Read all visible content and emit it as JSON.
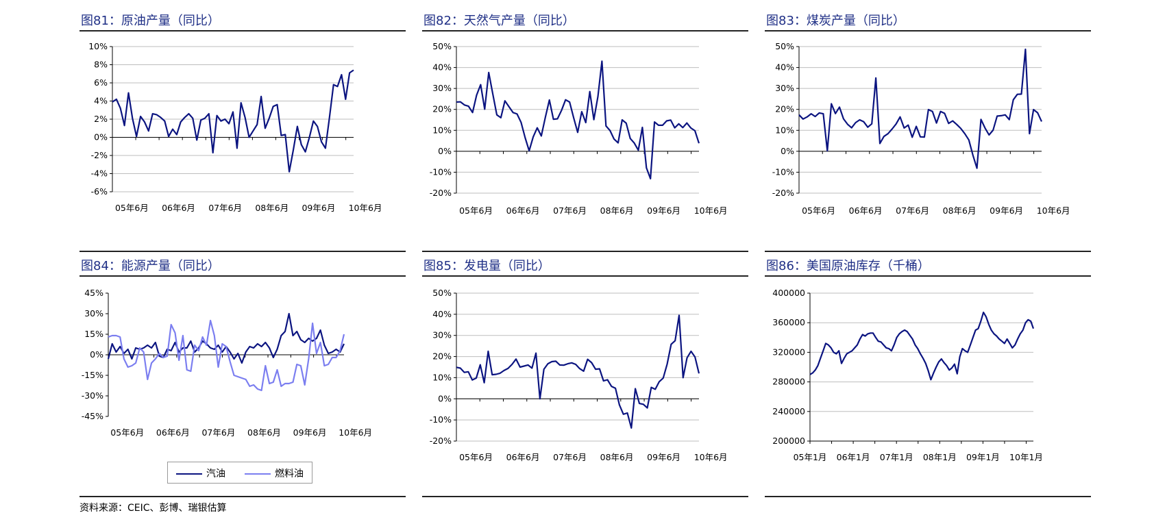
{
  "page": {
    "source_note": "资料来源：CEIC、彭博、瑞银估算"
  },
  "chart_data": [
    {
      "id": "fig81",
      "type": "line",
      "title": "图81：原油产量（同比）",
      "xlabel": "",
      "ylabel": "",
      "ylim": [
        -6,
        10
      ],
      "yticks": [
        "-6%",
        "-4%",
        "-2%",
        "0%",
        "2%",
        "4%",
        "6%",
        "8%",
        "10%"
      ],
      "yticks_values": [
        -6,
        -4,
        -2,
        0,
        2,
        4,
        6,
        8,
        10
      ],
      "xlim": [
        0,
        62
      ],
      "xticks": [
        "05年6月",
        "06年6月",
        "07年6月",
        "08年6月",
        "09年6月",
        "10年6月"
      ],
      "xticks_values": [
        5,
        17,
        29,
        41,
        53,
        65
      ],
      "grid": true,
      "series": [
        {
          "name": "",
          "color": "#0b1480",
          "values": [
            3.9,
            4.2,
            3.2,
            1.3,
            4.9,
            2.1,
            0.1,
            2.3,
            1.7,
            0.7,
            2.6,
            2.5,
            2.2,
            1.8,
            0.1,
            0.9,
            0.3,
            1.7,
            2.2,
            2.6,
            2.1,
            -0.3,
            1.9,
            2.1,
            2.6,
            -1.7,
            2.4,
            1.8,
            2.0,
            1.5,
            2.8,
            -1.2,
            3.8,
            2.2,
            0.0,
            0.7,
            1.4,
            4.5,
            1.0,
            2.1,
            3.4,
            3.6,
            0.2,
            0.3,
            -3.8,
            -1.4,
            1.2,
            -0.8,
            -1.6,
            0.0,
            1.8,
            1.2,
            -0.5,
            -1.2,
            2.2,
            5.8,
            5.6,
            6.9,
            4.2,
            7.1,
            7.4
          ]
        }
      ]
    },
    {
      "id": "fig82",
      "type": "line",
      "title": "图82：天然气产量（同比）",
      "xlabel": "",
      "ylabel": "",
      "ylim": [
        -20,
        50
      ],
      "yticks": [
        "-20%",
        "-10%",
        "0%",
        "10%",
        "20%",
        "30%",
        "40%",
        "50%"
      ],
      "yticks_values": [
        -20,
        -10,
        0,
        10,
        20,
        30,
        40,
        50
      ],
      "xlim": [
        0,
        62
      ],
      "xticks": [
        "05年6月",
        "06年6月",
        "07年6月",
        "08年6月",
        "09年6月",
        "10年6月"
      ],
      "xticks_values": [
        5,
        17,
        29,
        41,
        53,
        65
      ],
      "grid": true,
      "series": [
        {
          "name": "",
          "color": "#0b1480",
          "values": [
            23.5,
            23.6,
            22.1,
            21.5,
            18.5,
            26.8,
            31.8,
            20.1,
            37.6,
            27.4,
            17.4,
            16.0,
            24.1,
            21.3,
            18.5,
            17.8,
            13.8,
            6.5,
            0.2,
            6.9,
            11.2,
            7.3,
            16.2,
            24.5,
            15.3,
            15.5,
            19.5,
            24.6,
            23.5,
            16.0,
            9.0,
            18.9,
            13.7,
            28.5,
            15.1,
            26.1,
            43.0,
            12.1,
            9.9,
            5.8,
            4.0,
            15.0,
            13.4,
            6.1,
            3.9,
            0.5,
            11.4,
            -7.9,
            -13.1,
            14.0,
            12.4,
            12.4,
            14.5,
            14.9,
            11.2,
            13.1,
            11.3,
            13.5,
            11.1,
            9.8,
            3.8
          ]
        }
      ]
    },
    {
      "id": "fig83",
      "type": "line",
      "title": "图83：煤炭产量（同比）",
      "xlabel": "",
      "ylabel": "",
      "ylim": [
        -20,
        50
      ],
      "yticks": [
        "-20%",
        "-10%",
        "0%",
        "10%",
        "20%",
        "30%",
        "40%",
        "50%"
      ],
      "yticks_values": [
        -20,
        -10,
        0,
        10,
        20,
        30,
        40,
        50
      ],
      "xlim": [
        0,
        62
      ],
      "xticks": [
        "05年6月",
        "06年6月",
        "07年6月",
        "08年6月",
        "09年6月",
        "10年6月"
      ],
      "xticks_values": [
        5,
        17,
        29,
        41,
        53,
        65
      ],
      "grid": true,
      "series": [
        {
          "name": "",
          "color": "#0b1480",
          "values": [
            17.4,
            15.4,
            16.4,
            17.9,
            16.6,
            18.3,
            17.9,
            0.2,
            22.7,
            18.0,
            21.1,
            15.5,
            12.9,
            11.2,
            13.7,
            15.0,
            14.1,
            11.5,
            13.1,
            35.0,
            3.7,
            7.1,
            8.4,
            10.6,
            13.0,
            16.4,
            11.1,
            12.5,
            6.7,
            11.9,
            6.9,
            6.8,
            19.9,
            19.0,
            13.5,
            19.0,
            18.1,
            13.3,
            14.5,
            12.8,
            10.9,
            8.4,
            5.4,
            -1.8,
            -8.1,
            15.2,
            11.1,
            7.8,
            10.1,
            16.8,
            17.0,
            17.4,
            15.1,
            24.6,
            27.2,
            27.3,
            48.7,
            8.4,
            19.9,
            18.4,
            14.2
          ]
        }
      ]
    },
    {
      "id": "fig84",
      "type": "line",
      "title": "图84：能源产量（同比）",
      "xlabel": "",
      "ylabel": "",
      "ylim": [
        -45,
        45
      ],
      "yticks": [
        "-45%",
        "-30%",
        "-15%",
        "0%",
        "15%",
        "30%",
        "45%"
      ],
      "yticks_values": [
        -45,
        -30,
        -15,
        0,
        15,
        30,
        45
      ],
      "xlim": [
        0,
        62
      ],
      "xticks": [
        "05年6月",
        "06年6月",
        "07年6月",
        "08年6月",
        "09年6月",
        "10年6月"
      ],
      "xticks_values": [
        5,
        17,
        29,
        41,
        53,
        65
      ],
      "grid": false,
      "legend": "bottom",
      "series": [
        {
          "name": "汽油",
          "color": "#0b1480",
          "values": [
            -3,
            8,
            2,
            6,
            1,
            4,
            -3,
            5,
            4,
            5,
            7,
            5,
            9,
            -1,
            -2,
            4,
            3,
            9,
            2,
            5,
            5,
            10,
            2,
            5,
            10,
            8,
            5,
            4,
            7,
            2,
            6,
            2,
            -3,
            1,
            -6,
            2,
            6,
            5,
            8,
            6,
            9,
            5,
            -2,
            4,
            14,
            17,
            30,
            14,
            17,
            11,
            9,
            12,
            10,
            12,
            18,
            7,
            1,
            2,
            4,
            2,
            8
          ]
        },
        {
          "name": "燃料油",
          "color": "#7b7ef0",
          "values": [
            13,
            14,
            14,
            13,
            -3,
            -9,
            -8,
            -6,
            5,
            2,
            -18,
            -6,
            -3,
            1,
            -2,
            -1,
            22,
            16,
            -4,
            14,
            -11,
            -12,
            7,
            3,
            13,
            7,
            25,
            14,
            -9,
            8,
            6,
            -5,
            -15,
            -16,
            -17,
            -18,
            -23,
            -22,
            -25,
            -26,
            -8,
            -21,
            -20,
            -11,
            -23,
            -21,
            -21,
            -20,
            -7,
            -8,
            -22,
            -3,
            23,
            1,
            9,
            -8,
            -7,
            -2,
            -2,
            3,
            15
          ]
        }
      ]
    },
    {
      "id": "fig85",
      "type": "line",
      "title": "图85：发电量（同比）",
      "xlabel": "",
      "ylabel": "",
      "ylim": [
        -20,
        50
      ],
      "yticks": [
        "-20%",
        "-10%",
        "0%",
        "10%",
        "20%",
        "30%",
        "40%",
        "50%"
      ],
      "yticks_values": [
        -20,
        -10,
        0,
        10,
        20,
        30,
        40,
        50
      ],
      "xlim": [
        0,
        62
      ],
      "xticks": [
        "05年6月",
        "06年6月",
        "07年6月",
        "08年6月",
        "09年6月",
        "10年6月"
      ],
      "xticks_values": [
        5,
        17,
        29,
        41,
        53,
        65
      ],
      "grid": true,
      "series": [
        {
          "name": "",
          "color": "#0b1480",
          "values": [
            14.9,
            14.5,
            12.5,
            12.8,
            8.9,
            9.8,
            16.1,
            7.6,
            22.5,
            11.4,
            11.6,
            12.1,
            13.4,
            14.4,
            16.3,
            18.8,
            15.0,
            15.5,
            16.0,
            14.5,
            21.6,
            0.0,
            14.0,
            16.6,
            17.6,
            17.8,
            16.0,
            15.9,
            16.6,
            17.0,
            16.3,
            14.3,
            13.1,
            18.7,
            17.1,
            14.0,
            14.2,
            8.5,
            9.0,
            5.9,
            5.0,
            -2.9,
            -7.3,
            -6.7,
            -13.8,
            4.8,
            -2.2,
            -2.6,
            -4.3,
            5.4,
            4.5,
            8.1,
            9.8,
            16.5,
            25.8,
            27.5,
            39.5,
            10.0,
            19.4,
            22.5,
            19.8,
            12.0
          ]
        }
      ]
    },
    {
      "id": "fig86",
      "type": "line",
      "title": "图86：美国原油库存（千桶）",
      "xlabel": "",
      "ylabel": "",
      "ylim": [
        200000,
        400000
      ],
      "yticks": [
        "200000",
        "240000",
        "280000",
        "320000",
        "360000",
        "400000"
      ],
      "yticks_values": [
        200000,
        240000,
        280000,
        320000,
        360000,
        400000
      ],
      "xlim": [
        0,
        62
      ],
      "xticks": [
        "05年1月",
        "06年1月",
        "07年1月",
        "08年1月",
        "09年1月",
        "10年1月"
      ],
      "xticks_values": [
        0,
        12,
        24,
        36,
        48,
        60
      ],
      "grid": true,
      "series": [
        {
          "name": "",
          "color": "#0b1480",
          "values": [
            290000,
            292000,
            296000,
            302000,
            312000,
            322000,
            332000,
            330000,
            326000,
            320000,
            318000,
            322000,
            305000,
            312000,
            318000,
            320000,
            322000,
            326000,
            330000,
            338000,
            344000,
            342000,
            345000,
            346000,
            346000,
            340000,
            335000,
            334000,
            330000,
            326000,
            325000,
            322000,
            330000,
            340000,
            345000,
            348000,
            350000,
            348000,
            343000,
            338000,
            330000,
            325000,
            318000,
            312000,
            305000,
            295000,
            283000,
            292000,
            300000,
            307000,
            311000,
            306000,
            302000,
            296000,
            299000,
            304000,
            291000,
            314000,
            325000,
            322000,
            320000,
            330000,
            340000,
            350000,
            352000,
            362000,
            374000,
            368000,
            358000,
            350000,
            345000,
            342000,
            338000,
            335000,
            332000,
            338000,
            332000,
            326000,
            330000,
            338000,
            345000,
            350000,
            360000,
            364000,
            362000,
            352000
          ]
        }
      ]
    }
  ]
}
